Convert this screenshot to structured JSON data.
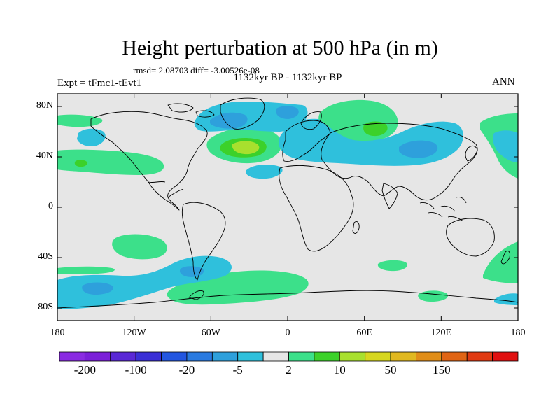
{
  "title": "Height perturbation at 500 hPa (in m)",
  "stats": "rmsd= 2.08703 diff= -3.00526e-08",
  "experiment": "Expt = tFmc1-tEvt1",
  "period": "1132kyr BP - 1132kyr BP",
  "season": "ANN",
  "lat_ticks": [
    {
      "label": "80N",
      "lat": 80
    },
    {
      "label": "40N",
      "lat": 40
    },
    {
      "label": "0",
      "lat": 0
    },
    {
      "label": "40S",
      "lat": -40
    },
    {
      "label": "80S",
      "lat": -80
    }
  ],
  "lon_ticks": [
    {
      "label": "180",
      "lon": -180
    },
    {
      "label": "120W",
      "lon": -120
    },
    {
      "label": "60W",
      "lon": -60
    },
    {
      "label": "0",
      "lon": 0
    },
    {
      "label": "60E",
      "lon": 60
    },
    {
      "label": "120E",
      "lon": 120
    },
    {
      "label": "180",
      "lon": 180
    }
  ],
  "colorbar": {
    "colors": [
      "#8a2be2",
      "#7b1fd9",
      "#5a28d6",
      "#3a2fd6",
      "#2356e0",
      "#2a7ae0",
      "#2ea0dc",
      "#2fc0dc",
      "#e6e6e6",
      "#3ce08a",
      "#3cd12a",
      "#a8e02e",
      "#d7d71f",
      "#e0b820",
      "#e08d18",
      "#e06414",
      "#e03a12",
      "#e01010"
    ],
    "labels": [
      {
        "text": "-200",
        "index": 1
      },
      {
        "text": "-100",
        "index": 3
      },
      {
        "text": "-20",
        "index": 5
      },
      {
        "text": "-5",
        "index": 7
      },
      {
        "text": "2",
        "index": 9
      },
      {
        "text": "10",
        "index": 11
      },
      {
        "text": "50",
        "index": 13
      },
      {
        "text": "150",
        "index": 15
      }
    ]
  },
  "colors": {
    "background": "#e6e6e6",
    "light_blue": "#2fc0dc",
    "medium_blue": "#2ea0dc",
    "light_green": "#3ce08a",
    "green": "#3cd12a",
    "yellow_green": "#a8e02e"
  }
}
